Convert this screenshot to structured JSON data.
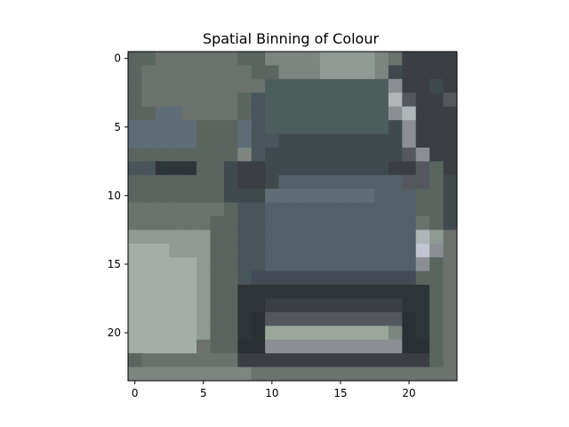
{
  "chart_data": {
    "type": "heatmap",
    "title": "Spatial Binning of Colour",
    "xlabel": "",
    "ylabel": "",
    "grid": false,
    "x_ticks": [
      0,
      5,
      10,
      15,
      20
    ],
    "y_ticks": [
      0,
      5,
      10,
      15,
      20
    ],
    "xlim": [
      -0.5,
      23.5
    ],
    "ylim": [
      23.5,
      -0.5
    ],
    "rows": 24,
    "cols": 24,
    "palette": {
      "A": "#5a6560",
      "B": "#6b716c",
      "C": "#7c8580",
      "D": "#8f9a94",
      "E": "#a3aea6",
      "F": "#526068",
      "G": "#48555a",
      "H": "#3f4a4e",
      "I": "#34393c",
      "J": "#2e3538",
      "K": "#4c5e5c",
      "L": "#5f6d77",
      "M": "#8b8f93",
      "N": "#b0b6b8",
      "O": "#c2c4d2",
      "P": "#3b3f44",
      "Q": "#54585e",
      "R": "#9ba79b",
      "S": "#424a55",
      "T": "#2a3034"
    },
    "pixels": [
      "AABBBBBBAACCCCDDDDCBPPPP",
      "ABBBBBBBBAACCCDDDDCHPPPP",
      "ABBBBBBBBBKKKKKKKKKMPPHP",
      "ABBBBBBBAGKKKKKKKKKNQPPQ",
      "AALLBBBBAGKKKKKKKKKMNPPP",
      "LLLLLAAALGKKKKKKKKKHMPPP",
      "LLLLLAAALGGHHHHHHHHHMPPP",
      "AAAAAAAACGHHHHHHHHHHQMPP",
      "GGJJJAAHPPHHHHHHHHHPPQAP",
      "AAAAAAAHPPHFFFFFFFFFQQAH",
      "AAAAAAAHHHLLLLLLLLFFFAAH",
      "BBBBBBBAGGFFFFFFFFFFFAAH",
      "BBBBBBAAGGFFFFFFFFFFFBAH",
      "DDDDDDAAGGFFFFFFFFFFFNDB",
      "EEEDDDAAGGFFFFFFFFFFFOMB",
      "EEEEEDAAGGFFFFFFFFFFFMAB",
      "EEEEEDAAGSSSSSSSSSSSSAAB",
      "EEEEEDAAJJJJJJJJJJJJJJAB",
      "EEEEEDAAJJPPPPPPPPPPJJAB",
      "EEEEEDAAJTQQQQQQQQQQTJAB",
      "EEEEEDAAJTRRRRRRRRRCTJAB",
      "EEEEEBAATTMMMMMMMMMMTTAB",
      "ABBBBBBBPPPPPPPPPPPPPPAB",
      "CCCCCCCCCBBBBBBBBBBBBBBB"
    ]
  }
}
